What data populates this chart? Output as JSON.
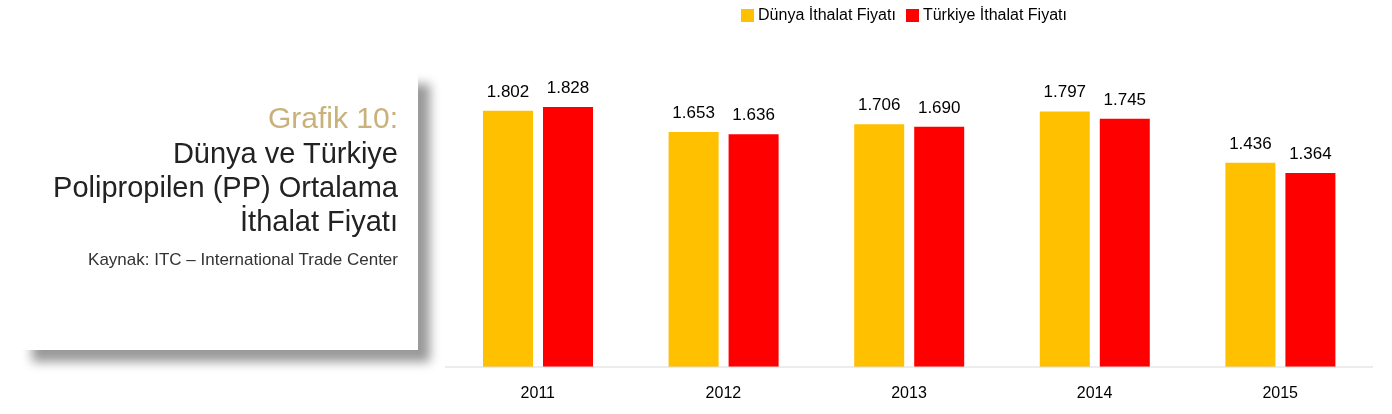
{
  "chart_data": {
    "type": "bar",
    "title": "Grafik 10:",
    "subtitle": "Dünya ve Türkiye Polipropilen (PP) Ortalama İthalat Fiyatı",
    "annotations": [
      "Kaynak: ITC – International Trade Center"
    ],
    "categories": [
      "2011",
      "2012",
      "2013",
      "2014",
      "2015"
    ],
    "series": [
      {
        "name": "Dünya İthalat Fiyatı",
        "color": "#ffc000",
        "values": [
          1802,
          1653,
          1706,
          1797,
          1436
        ],
        "value_labels": [
          "1.802",
          "1.653",
          "1.706",
          "1.797",
          "1.436"
        ]
      },
      {
        "name": "Türkiye İthalat Fiyatı",
        "color": "#ff0000",
        "values": [
          1828,
          1636,
          1690,
          1745,
          1364
        ],
        "value_labels": [
          "1.828",
          "1.636",
          "1.690",
          "1.745",
          "1.364"
        ]
      }
    ],
    "legend": "top",
    "grid": false
  }
}
